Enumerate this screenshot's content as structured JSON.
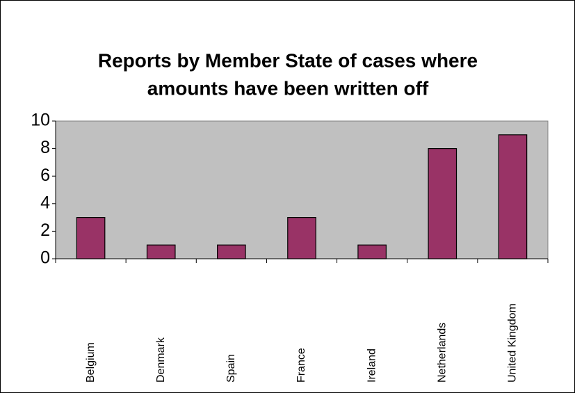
{
  "chart_data": {
    "type": "bar",
    "title": [
      "Reports by Member State of cases where",
      "amounts have been written off"
    ],
    "categories": [
      "Belgium",
      "Denmark",
      "Spain",
      "France",
      "Ireland",
      "Netherlands",
      "United Kingdom"
    ],
    "values": [
      3,
      1,
      1,
      3,
      1,
      8,
      9
    ],
    "color": "#993366",
    "plot_color": "#c0c0c0",
    "ylim": [
      0,
      10
    ],
    "yticks": [
      0,
      2,
      4,
      6,
      8,
      10
    ],
    "grid": false
  }
}
